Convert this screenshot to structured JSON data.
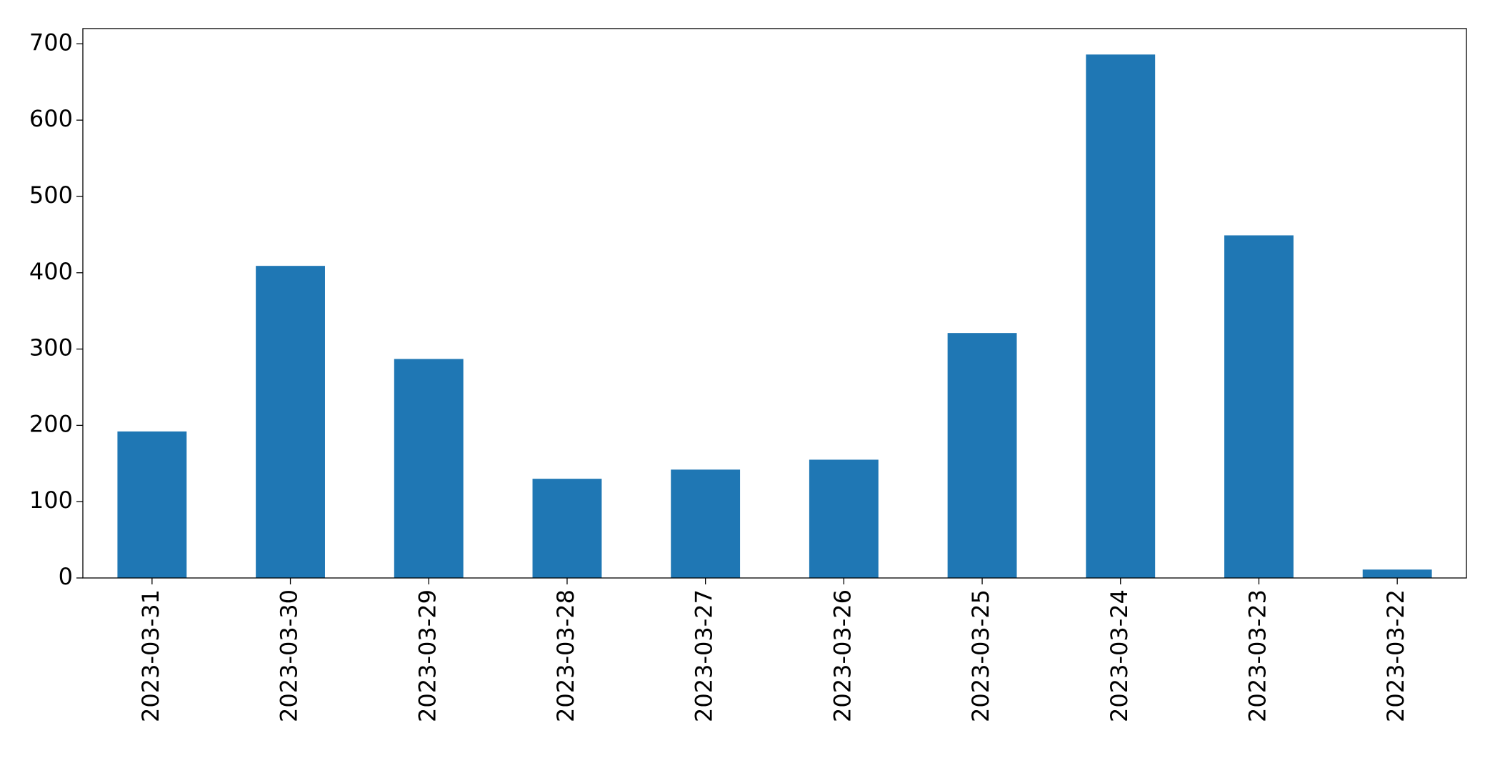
{
  "chart_data": {
    "type": "bar",
    "categories": [
      "2023-03-31",
      "2023-03-30",
      "2023-03-29",
      "2023-03-28",
      "2023-03-27",
      "2023-03-26",
      "2023-03-25",
      "2023-03-24",
      "2023-03-23",
      "2023-03-22"
    ],
    "values": [
      192,
      409,
      287,
      130,
      142,
      155,
      321,
      686,
      449,
      11
    ],
    "color": "#1f77b4",
    "ylim": [
      0,
      720
    ],
    "yticks": [
      0,
      100,
      200,
      300,
      400,
      500,
      600,
      700
    ],
    "grid": false
  }
}
